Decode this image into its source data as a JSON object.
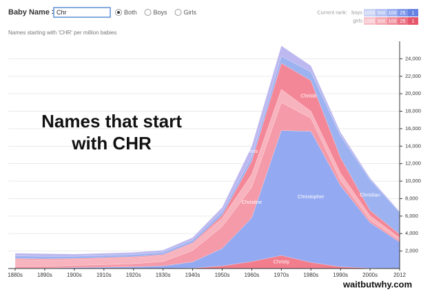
{
  "controls": {
    "label": "Baby Name >",
    "input": "Chr",
    "options": [
      "Both",
      "Boys",
      "Girls"
    ],
    "selected": 0
  },
  "rank_legend": {
    "label": "Current rank:",
    "rows": [
      {
        "name": "boys",
        "steps": [
          1000,
          500,
          100,
          25,
          1
        ],
        "colors": [
          "#c9d3f5",
          "#b3c2f3",
          "#9cb0f0",
          "#8199ea",
          "#6683e3"
        ]
      },
      {
        "name": "girls",
        "steps": [
          1000,
          500,
          100,
          25,
          1
        ],
        "colors": [
          "#f7c3ca",
          "#f4a9b3",
          "#f08e9c",
          "#eb7384",
          "#e5566c"
        ]
      }
    ]
  },
  "footer": "waitbutwhy.com",
  "chart_data": {
    "type": "stacked_area",
    "subtitle": "Names starting with 'CHR' per million babies",
    "annotation": "Names that start with CHR",
    "categories": [
      "1880s",
      "1890s",
      "1900s",
      "1910s",
      "1920s",
      "1930s",
      "1940s",
      "1950s",
      "1960s",
      "1970s",
      "1980s",
      "1990s",
      "2000s",
      "2012"
    ],
    "series": [
      {
        "name": "Christy",
        "color": "#f27d8c",
        "values": [
          0,
          0,
          0,
          0,
          0,
          0,
          50,
          300,
          800,
          1500,
          700,
          200,
          50,
          20
        ]
      },
      {
        "name": "Christopher",
        "color": "#93a9f2",
        "values": [
          50,
          50,
          100,
          150,
          200,
          300,
          700,
          2000,
          5000,
          14300,
          15000,
          9300,
          5200,
          3000
        ]
      },
      {
        "name": "Christine",
        "color": "#f59aa8",
        "values": [
          200,
          200,
          250,
          300,
          350,
          500,
          1300,
          2500,
          3500,
          3200,
          1500,
          600,
          300,
          200
        ]
      },
      {
        "color": "#f8b4be",
        "values": [
          800,
          750,
          700,
          700,
          700,
          700,
          800,
          1000,
          1500,
          1500,
          800,
          800,
          500,
          300
        ]
      },
      {
        "name": "Christina",
        "color": "#f48797",
        "values": [
          100,
          100,
          100,
          100,
          100,
          100,
          100,
          300,
          1500,
          3000,
          3500,
          1800,
          600,
          400
        ]
      },
      {
        "name": "Christian",
        "color": "#9db2f0",
        "values": [
          300,
          300,
          250,
          250,
          250,
          250,
          300,
          400,
          500,
          800,
          1000,
          2500,
          3500,
          2500
        ]
      },
      {
        "name": "Chris",
        "color": "#bdb9f0",
        "values": [
          300,
          300,
          250,
          250,
          250,
          250,
          300,
          500,
          1200,
          1200,
          700,
          400,
          200,
          100
        ]
      }
    ],
    "ylim": [
      0,
      26000
    ],
    "yticks": [
      {
        "value": 2000,
        "label": "2,000"
      },
      {
        "value": 4000,
        "label": "4,000"
      },
      {
        "value": 6000,
        "label": "6,000"
      },
      {
        "value": 8000,
        "label": "8,000"
      },
      {
        "value": 10000,
        "label": "10,000"
      },
      {
        "value": 12000,
        "label": "12,000"
      },
      {
        "value": 14000,
        "label": "14,000"
      },
      {
        "value": 16000,
        "label": "16,000"
      },
      {
        "value": 18000,
        "label": "18,000"
      },
      {
        "value": 20000,
        "label": "20,000"
      },
      {
        "value": 22000,
        "label": "22,000"
      },
      {
        "value": 24000,
        "label": "24,000"
      }
    ],
    "grid": true
  }
}
